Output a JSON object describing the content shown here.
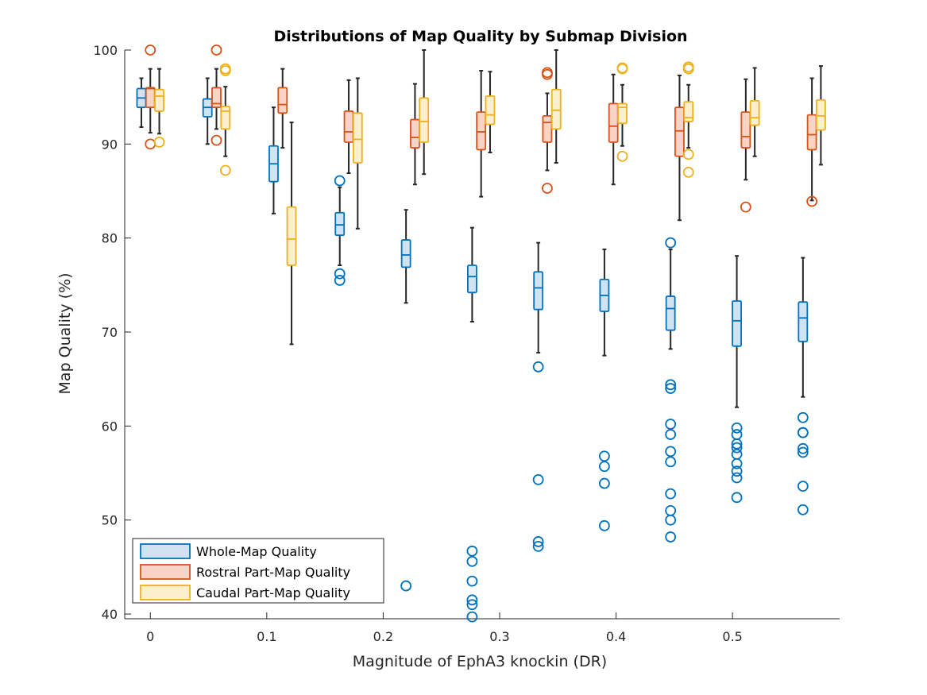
{
  "chart_data": {
    "type": "box",
    "title": "Distributions of Map Quality by Submap Division",
    "xlabel": "Magnitude of EphA3 knockin (DR)",
    "ylabel": "Map Quality (%)",
    "xlim": [
      -0.022,
      0.592
    ],
    "ylim": [
      39.5,
      100
    ],
    "xticks": [
      0,
      0.1,
      0.2,
      0.3,
      0.4,
      0.5
    ],
    "xtick_labels": [
      "0",
      "0.1",
      "0.2",
      "0.3",
      "0.4",
      "0.5"
    ],
    "yticks": [
      40,
      50,
      60,
      70,
      80,
      90,
      100
    ],
    "ytick_labels": [
      "40",
      "50",
      "60",
      "70",
      "80",
      "90",
      "100"
    ],
    "grid": false,
    "legend_position": "bottom-left",
    "box_offset": 0.0077,
    "series": [
      {
        "name": "Whole-Map Quality",
        "color": "#0072BD",
        "fill": "#cfe3f1",
        "boxes": [
          {
            "x": 0.0,
            "q1": 93.9,
            "median": 94.9,
            "q3": 95.9,
            "wlo": 91.8,
            "whi": 97.0,
            "outliers": []
          },
          {
            "x": 0.0568,
            "q1": 92.9,
            "median": 93.9,
            "q3": 94.8,
            "wlo": 90.0,
            "whi": 97.0,
            "outliers": []
          },
          {
            "x": 0.1136,
            "q1": 86.0,
            "median": 87.9,
            "q3": 89.8,
            "wlo": 82.6,
            "whi": 93.9,
            "outliers": []
          },
          {
            "x": 0.1704,
            "q1": 80.3,
            "median": 81.4,
            "q3": 82.7,
            "wlo": 77.1,
            "whi": 85.4,
            "outliers": [
              86.1,
              76.2,
              75.5
            ]
          },
          {
            "x": 0.2273,
            "q1": 76.9,
            "median": 78.2,
            "q3": 79.8,
            "wlo": 73.1,
            "whi": 83.0,
            "outliers": [
              43.0
            ]
          },
          {
            "x": 0.2841,
            "q1": 74.2,
            "median": 75.9,
            "q3": 77.1,
            "wlo": 71.1,
            "whi": 81.1,
            "outliers": [
              46.7,
              45.6,
              43.5,
              41.5,
              41.0,
              39.7
            ]
          },
          {
            "x": 0.3409,
            "q1": 72.4,
            "median": 74.7,
            "q3": 76.4,
            "wlo": 67.8,
            "whi": 79.5,
            "outliers": [
              66.3,
              54.3,
              47.7,
              47.2
            ]
          },
          {
            "x": 0.3977,
            "q1": 72.2,
            "median": 73.9,
            "q3": 75.6,
            "wlo": 67.5,
            "whi": 78.8,
            "outliers": [
              56.8,
              55.7,
              53.9,
              49.4
            ]
          },
          {
            "x": 0.4545,
            "q1": 70.2,
            "median": 72.5,
            "q3": 73.8,
            "wlo": 68.2,
            "whi": 78.8,
            "outliers": [
              79.5,
              64.4,
              64.0,
              60.2,
              59.1,
              57.3,
              56.2,
              52.8,
              51.0,
              50.0,
              48.2
            ]
          },
          {
            "x": 0.5114,
            "q1": 68.5,
            "median": 71.2,
            "q3": 73.3,
            "wlo": 62.0,
            "whi": 78.1,
            "outliers": [
              59.8,
              59.1,
              58.1,
              57.7,
              57.0,
              56.0,
              55.2,
              54.5,
              52.4
            ]
          },
          {
            "x": 0.5682,
            "q1": 69.0,
            "median": 71.5,
            "q3": 73.2,
            "wlo": 63.1,
            "whi": 77.9,
            "outliers": [
              60.9,
              59.3,
              59.3,
              57.6,
              57.2,
              53.6,
              51.1
            ]
          }
        ]
      },
      {
        "name": "Rostral Part-Map Quality",
        "color": "#D95319",
        "fill": "#f7d4c5",
        "boxes": [
          {
            "x": 0.0,
            "q1": 93.9,
            "median": 95.9,
            "q3": 96.0,
            "wlo": 91.2,
            "whi": 98.0,
            "outliers": [
              100.0,
              90.0
            ]
          },
          {
            "x": 0.0568,
            "q1": 93.9,
            "median": 94.3,
            "q3": 96.0,
            "wlo": 91.6,
            "whi": 98.0,
            "outliers": [
              100.0,
              90.4
            ]
          },
          {
            "x": 0.1136,
            "q1": 93.3,
            "median": 94.2,
            "q3": 96.0,
            "wlo": 89.6,
            "whi": 98.0,
            "outliers": []
          },
          {
            "x": 0.1704,
            "q1": 90.2,
            "median": 91.3,
            "q3": 93.5,
            "wlo": 86.9,
            "whi": 96.8,
            "outliers": []
          },
          {
            "x": 0.2273,
            "q1": 89.6,
            "median": 90.7,
            "q3": 92.6,
            "wlo": 85.7,
            "whi": 96.4,
            "outliers": []
          },
          {
            "x": 0.2841,
            "q1": 89.4,
            "median": 91.3,
            "q3": 93.4,
            "wlo": 84.4,
            "whi": 97.8,
            "outliers": []
          },
          {
            "x": 0.3409,
            "q1": 90.2,
            "median": 92.3,
            "q3": 93.0,
            "wlo": 87.2,
            "whi": 95.4,
            "outliers": [
              97.6,
              97.4,
              85.3
            ]
          },
          {
            "x": 0.3977,
            "q1": 90.2,
            "median": 91.9,
            "q3": 94.3,
            "wlo": 85.7,
            "whi": 97.4,
            "outliers": []
          },
          {
            "x": 0.4545,
            "q1": 88.7,
            "median": 91.4,
            "q3": 93.9,
            "wlo": 81.9,
            "whi": 97.3,
            "outliers": []
          },
          {
            "x": 0.5114,
            "q1": 89.6,
            "median": 90.8,
            "q3": 93.4,
            "wlo": 86.2,
            "whi": 96.9,
            "outliers": [
              83.3
            ]
          },
          {
            "x": 0.5682,
            "q1": 89.4,
            "median": 91.0,
            "q3": 93.1,
            "wlo": 84.0,
            "whi": 97.0,
            "outliers": [
              83.9
            ]
          }
        ]
      },
      {
        "name": "Caudal Part-Map Quality",
        "color": "#EDB120",
        "fill": "#fbefcd",
        "boxes": [
          {
            "x": 0.0,
            "q1": 93.5,
            "median": 95.1,
            "q3": 95.8,
            "wlo": 91.1,
            "whi": 98.0,
            "outliers": [
              90.2
            ]
          },
          {
            "x": 0.0568,
            "q1": 91.6,
            "median": 93.5,
            "q3": 94.0,
            "wlo": 88.7,
            "whi": 96.1,
            "outliers": [
              98.0,
              97.8,
              87.2
            ]
          },
          {
            "x": 0.1136,
            "q1": 77.1,
            "median": 79.9,
            "q3": 83.3,
            "wlo": 68.7,
            "whi": 92.3,
            "outliers": []
          },
          {
            "x": 0.1704,
            "q1": 88.0,
            "median": 90.5,
            "q3": 93.3,
            "wlo": 81.0,
            "whi": 97.0,
            "outliers": []
          },
          {
            "x": 0.2273,
            "q1": 90.2,
            "median": 92.4,
            "q3": 94.9,
            "wlo": 86.8,
            "whi": 100.0,
            "outliers": []
          },
          {
            "x": 0.2841,
            "q1": 92.1,
            "median": 93.1,
            "q3": 95.1,
            "wlo": 89.1,
            "whi": 97.7,
            "outliers": []
          },
          {
            "x": 0.3409,
            "q1": 91.6,
            "median": 93.6,
            "q3": 95.8,
            "wlo": 88.0,
            "whi": 100.0,
            "outliers": []
          },
          {
            "x": 0.3977,
            "q1": 92.2,
            "median": 93.9,
            "q3": 94.3,
            "wlo": 89.8,
            "whi": 96.3,
            "outliers": [
              98.1,
              98.0,
              88.7
            ]
          },
          {
            "x": 0.4545,
            "q1": 92.4,
            "median": 92.8,
            "q3": 94.5,
            "wlo": 89.6,
            "whi": 96.3,
            "outliers": [
              98.2,
              98.0,
              88.9,
              87.0
            ]
          },
          {
            "x": 0.5114,
            "q1": 92.0,
            "median": 92.8,
            "q3": 94.6,
            "wlo": 88.7,
            "whi": 98.1,
            "outliers": []
          },
          {
            "x": 0.5682,
            "q1": 91.5,
            "median": 93.0,
            "q3": 94.7,
            "wlo": 87.8,
            "whi": 98.3,
            "outliers": []
          }
        ]
      }
    ]
  }
}
